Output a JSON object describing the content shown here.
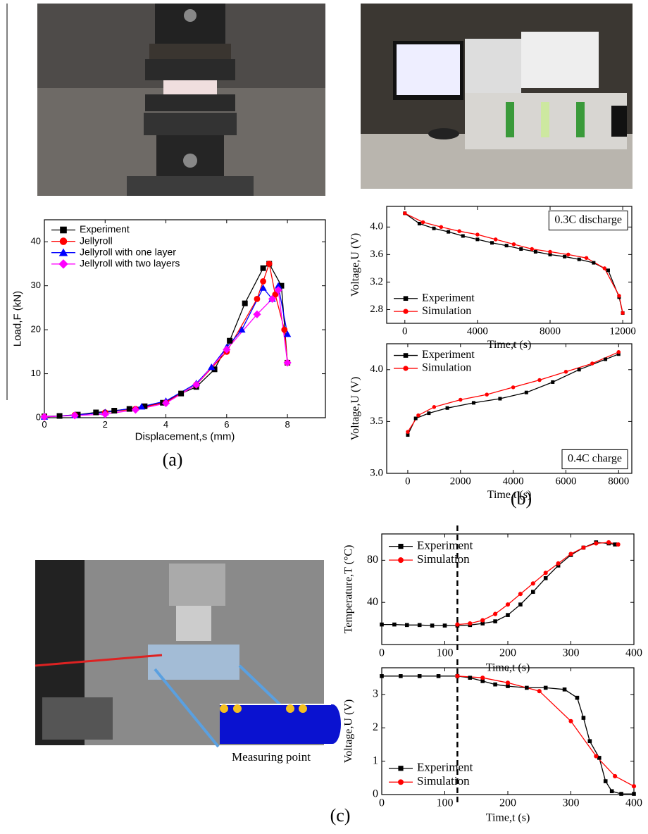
{
  "chart_data": [
    {
      "type": "line",
      "xlabel": "Displacement,s (mm)",
      "ylabel": "Load,F (kN)",
      "xlim": [
        0,
        9.25
      ],
      "xticks": [
        0,
        2,
        4,
        6,
        8
      ],
      "ylim": [
        0,
        45
      ],
      "yticks": [
        0,
        10,
        20,
        30,
        40
      ],
      "legend": "upper left",
      "series": [
        {
          "name": "Experiment",
          "color": "#000000",
          "marker": "square",
          "x": [
            0,
            0.5,
            1.1,
            1.7,
            2.3,
            2.8,
            3.3,
            3.9,
            4.5,
            5,
            5.6,
            6.1,
            6.6,
            7.2,
            7.4,
            7.8,
            8
          ],
          "values": [
            0.3,
            0.4,
            0.7,
            1.2,
            1.6,
            2,
            2.6,
            3.4,
            5.5,
            7,
            11,
            17.5,
            26,
            34,
            35,
            30,
            12.5
          ]
        },
        {
          "name": "Jellyroll",
          "color": "#ff0000",
          "marker": "circle",
          "x": [
            0,
            1,
            2,
            3,
            4,
            5,
            6,
            7,
            7.2,
            7.4,
            7.6,
            7.9,
            8
          ],
          "values": [
            0.2,
            0.6,
            1.2,
            2,
            3.5,
            7.5,
            15,
            27,
            31,
            35,
            28,
            20,
            12.5
          ]
        },
        {
          "name": "Jellyroll with one layer",
          "color": "#0000ff",
          "marker": "triangle",
          "x": [
            0,
            1,
            2,
            3.2,
            4,
            5,
            5.5,
            6,
            6.5,
            7.2,
            7.5,
            7.7,
            8
          ],
          "values": [
            0.2,
            0.6,
            1.2,
            2.5,
            3.8,
            7.8,
            11.5,
            16,
            20,
            29.5,
            27,
            30,
            19
          ]
        },
        {
          "name": "Jellyroll with two layers",
          "color": "#ff00ff",
          "marker": "diamond",
          "x": [
            0,
            1,
            2,
            3,
            4,
            5,
            6,
            7,
            7.5,
            7.7,
            8
          ],
          "values": [
            0.2,
            0.5,
            0.8,
            1.8,
            3.3,
            7.5,
            15.5,
            23.5,
            27,
            29,
            12.5
          ]
        }
      ]
    },
    {
      "type": "line",
      "xlabel": "Time,t (s)",
      "ylabel": "Voltage,U (V)",
      "xlim": [
        -1000,
        12500
      ],
      "xticks": [
        0,
        4000,
        8000,
        12000
      ],
      "ylim": [
        2.6,
        4.3
      ],
      "yticks": [
        2.8,
        3.2,
        3.6,
        {
          "value": 4,
          "label": "4.0"
        }
      ],
      "legend": "lower left",
      "annotation": "0.3C discharge",
      "annotation_corner": "upper right",
      "series": [
        {
          "name": "Experiment",
          "color": "#000000",
          "marker": "square",
          "x": [
            0,
            800,
            1600,
            2400,
            3200,
            4000,
            4800,
            5600,
            6400,
            7200,
            8000,
            8800,
            9600,
            10400,
            11200,
            11800,
            12000
          ],
          "values": [
            4.2,
            4.05,
            3.98,
            3.93,
            3.87,
            3.82,
            3.77,
            3.73,
            3.68,
            3.64,
            3.6,
            3.57,
            3.53,
            3.48,
            3.37,
            2.98,
            2.75
          ]
        },
        {
          "name": "Simulation",
          "color": "#ff0000",
          "marker": "circle",
          "x": [
            0,
            1000,
            2000,
            3000,
            4000,
            5000,
            6000,
            7000,
            8000,
            9000,
            10000,
            11000,
            11800,
            12000
          ],
          "values": [
            4.2,
            4.07,
            4.0,
            3.94,
            3.89,
            3.82,
            3.75,
            3.68,
            3.64,
            3.6,
            3.55,
            3.4,
            3.0,
            2.75
          ]
        }
      ]
    },
    {
      "type": "line",
      "xlabel": "Time,t (s)",
      "ylabel": "Voltage,U (V)",
      "xlim": [
        -800,
        8500
      ],
      "xticks": [
        0,
        2000,
        4000,
        6000,
        8000
      ],
      "ylim": [
        3.0,
        4.25
      ],
      "yticks": [
        {
          "value": 3,
          "label": "3.0"
        },
        3.5,
        {
          "value": 4,
          "label": "4.0"
        }
      ],
      "legend": "upper left",
      "annotation": "0.4C charge",
      "annotation_corner": "lower right",
      "series": [
        {
          "name": "Experiment",
          "color": "#000000",
          "marker": "square",
          "x": [
            0,
            300,
            800,
            1500,
            2500,
            3500,
            4500,
            5500,
            6500,
            7500,
            8000
          ],
          "values": [
            3.37,
            3.53,
            3.58,
            3.63,
            3.68,
            3.72,
            3.78,
            3.88,
            4.0,
            4.1,
            4.15
          ]
        },
        {
          "name": "Simulation",
          "color": "#ff0000",
          "marker": "circle",
          "x": [
            0,
            400,
            1000,
            2000,
            3000,
            4000,
            5000,
            6000,
            7000,
            8000
          ],
          "values": [
            3.4,
            3.56,
            3.64,
            3.71,
            3.76,
            3.83,
            3.9,
            3.98,
            4.06,
            4.17
          ]
        }
      ]
    },
    {
      "type": "line",
      "xlabel": "Time,t (s)",
      "ylabel": "Temperature,T (°C)",
      "xlim": [
        0,
        400
      ],
      "xticks": [
        0,
        100,
        200,
        300,
        400
      ],
      "ylim": [
        0,
        105
      ],
      "yticks": [
        40,
        80
      ],
      "legend": "upper left",
      "marker_x": 120,
      "series": [
        {
          "name": "Experiment",
          "color": "#000000",
          "marker": "square",
          "x": [
            0,
            20,
            40,
            60,
            80,
            100,
            120,
            140,
            160,
            180,
            200,
            220,
            240,
            260,
            280,
            300,
            320,
            340,
            360,
            370
          ],
          "values": [
            19,
            19,
            18.5,
            18.5,
            18,
            18,
            18,
            18.5,
            20,
            22,
            28,
            38,
            50,
            63,
            75,
            85,
            92,
            97,
            96,
            95
          ]
        },
        {
          "name": "Simulation",
          "color": "#ff0000",
          "marker": "circle",
          "x": [
            120,
            140,
            160,
            180,
            200,
            220,
            240,
            260,
            280,
            300,
            320,
            340,
            360,
            375
          ],
          "values": [
            19,
            20,
            23,
            29,
            38,
            48,
            58,
            68,
            77,
            86,
            92,
            96,
            97,
            95
          ]
        }
      ]
    },
    {
      "type": "line",
      "xlabel": "Time,t (s)",
      "ylabel": "Voltage,U (V)",
      "xlim": [
        0,
        400
      ],
      "xticks": [
        0,
        100,
        200,
        300,
        400
      ],
      "ylim": [
        0,
        3.8
      ],
      "yticks": [
        0,
        1,
        2,
        3
      ],
      "legend": "lower left",
      "marker_x": 120,
      "series": [
        {
          "name": "Experiment",
          "color": "#000000",
          "marker": "square",
          "x": [
            0,
            30,
            60,
            90,
            120,
            140,
            160,
            180,
            200,
            230,
            260,
            290,
            310,
            320,
            330,
            345,
            355,
            365,
            380,
            400
          ],
          "values": [
            3.55,
            3.55,
            3.55,
            3.55,
            3.55,
            3.5,
            3.4,
            3.3,
            3.25,
            3.2,
            3.2,
            3.15,
            2.9,
            2.3,
            1.6,
            1.1,
            0.4,
            0.1,
            0.02,
            0.02
          ]
        },
        {
          "name": "Simulation",
          "color": "#ff0000",
          "marker": "circle",
          "x": [
            120,
            160,
            200,
            250,
            300,
            340,
            370,
            400
          ],
          "values": [
            3.55,
            3.5,
            3.35,
            3.1,
            2.2,
            1.15,
            0.55,
            0.25
          ]
        }
      ]
    }
  ],
  "panel_labels": [
    "(a)",
    "(b)",
    "(c)"
  ],
  "photo_caption": "Measuring point"
}
